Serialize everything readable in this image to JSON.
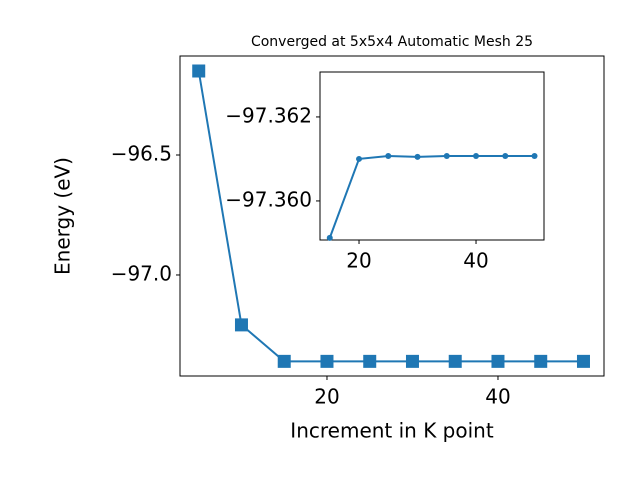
{
  "chart_data": [
    {
      "type": "line",
      "title": "Converged at 5x5x4 Automatic Mesh 25",
      "xlabel": "Increment in K point",
      "ylabel": "Energy (eV)",
      "x": [
        5,
        10,
        15,
        20,
        25,
        30,
        35,
        40,
        45,
        50
      ],
      "series": [
        {
          "color": "#1f77b4",
          "marker": "square",
          "values": [
            -96.15,
            -97.208,
            -97.36,
            -97.36,
            -97.36,
            -97.36,
            -97.36,
            -97.36,
            -97.36,
            -97.36
          ]
        }
      ],
      "xlim": [
        2.81,
        52.4
      ],
      "ylim": [
        -97.421,
        -96.0875
      ],
      "xticks": [
        20,
        40
      ],
      "yticks": [
        {
          "value": -97.0,
          "label": "−97.0"
        },
        {
          "value": -96.5,
          "label": "−96.5"
        }
      ]
    },
    {
      "type": "line",
      "x": [
        15,
        20,
        25,
        30,
        35,
        40,
        45,
        50
      ],
      "series": [
        {
          "color": "#1f77b4",
          "marker": "circle",
          "values": [
            -97.35912,
            -97.361,
            -97.36107,
            -97.36105,
            -97.36107,
            -97.36107,
            -97.36107,
            -97.36107
          ]
        }
      ],
      "xlim": [
        13.33,
        51.62
      ],
      "ylim": [
        -97.35907,
        -97.36307
      ],
      "xticks": [
        20,
        40
      ],
      "yticks": [
        {
          "value": -97.36,
          "label": "−97.360"
        },
        {
          "value": -97.362,
          "label": "−97.362"
        }
      ]
    }
  ]
}
